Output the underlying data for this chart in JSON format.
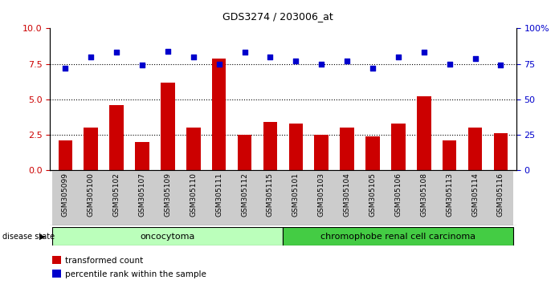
{
  "title": "GDS3274 / 203006_at",
  "categories": [
    "GSM305099",
    "GSM305100",
    "GSM305102",
    "GSM305107",
    "GSM305109",
    "GSM305110",
    "GSM305111",
    "GSM305112",
    "GSM305115",
    "GSM305101",
    "GSM305103",
    "GSM305104",
    "GSM305105",
    "GSM305106",
    "GSM305108",
    "GSM305113",
    "GSM305114",
    "GSM305116"
  ],
  "red_values": [
    2.1,
    3.0,
    4.6,
    2.0,
    6.2,
    3.0,
    7.9,
    2.5,
    3.4,
    3.3,
    2.5,
    3.0,
    2.4,
    3.3,
    5.2,
    2.1,
    3.0,
    2.6
  ],
  "blue_values": [
    72,
    80,
    83,
    74,
    84,
    80,
    75,
    83,
    80,
    77,
    75,
    77,
    72,
    80,
    83,
    75,
    79,
    74
  ],
  "ylim_left": [
    0,
    10
  ],
  "ylim_right": [
    0,
    100
  ],
  "yticks_left": [
    0,
    2.5,
    5.0,
    7.5,
    10.0
  ],
  "yticks_right": [
    0,
    25,
    50,
    75,
    100
  ],
  "group1_label": "oncocytoma",
  "group2_label": "chromophobe renal cell carcinoma",
  "group1_count": 9,
  "group2_count": 9,
  "legend_red": "transformed count",
  "legend_blue": "percentile rank within the sample",
  "bar_color": "#cc0000",
  "dot_color": "#0000cc",
  "bg_color": "#ffffff",
  "group1_color": "#bbffbb",
  "group2_color": "#44cc44",
  "tick_bg_color": "#cccccc",
  "label_color_left": "#cc0000",
  "label_color_right": "#0000cc",
  "dotted_line_color": "#000000",
  "grid_vals": [
    2.5,
    5.0,
    7.5
  ]
}
